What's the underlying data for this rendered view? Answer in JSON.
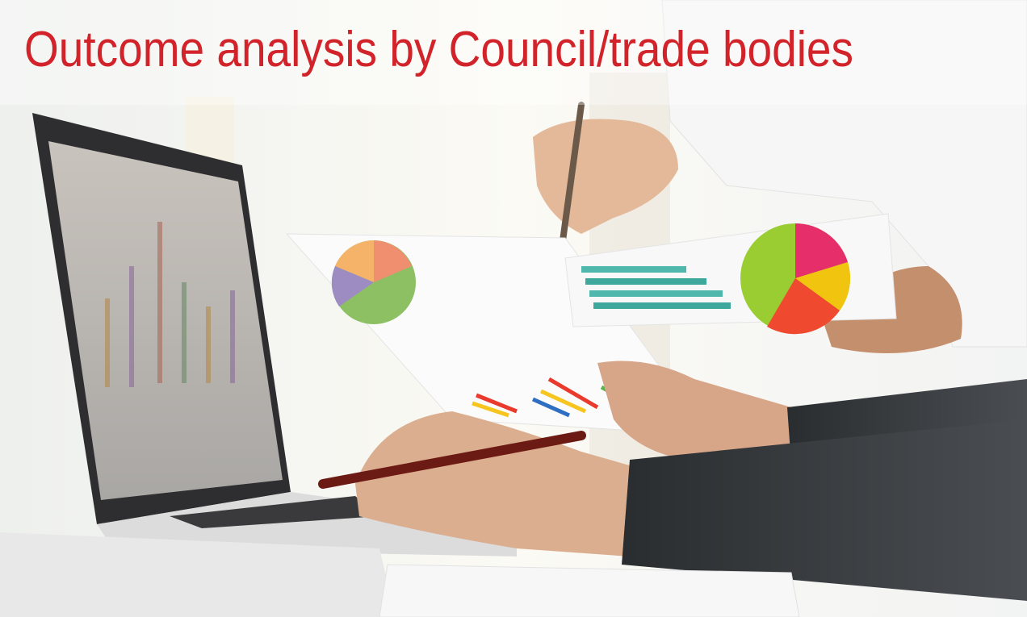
{
  "title": "Outcome analysis by Council/trade bodies"
}
